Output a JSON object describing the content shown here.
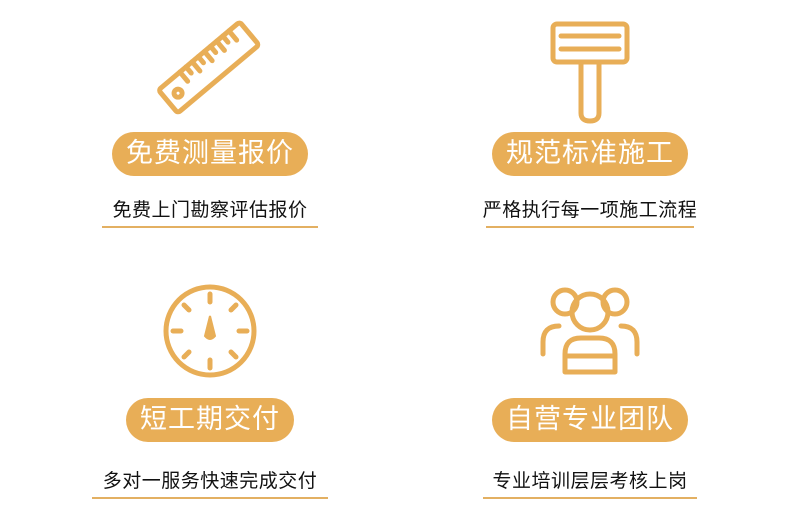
{
  "accent_color": "#e8ae57",
  "features": [
    {
      "icon": "ruler-icon",
      "title": "免费测量报价",
      "description": "免费上门勘察评估报价"
    },
    {
      "icon": "scraper-icon",
      "title": "规范标准施工",
      "description": "严格执行每一项施工流程"
    },
    {
      "icon": "clock-icon",
      "title": "短工期交付",
      "description": "多对一服务快速完成交付"
    },
    {
      "icon": "team-icon",
      "title": "自营专业团队",
      "description": "专业培训层层考核上岗"
    }
  ]
}
